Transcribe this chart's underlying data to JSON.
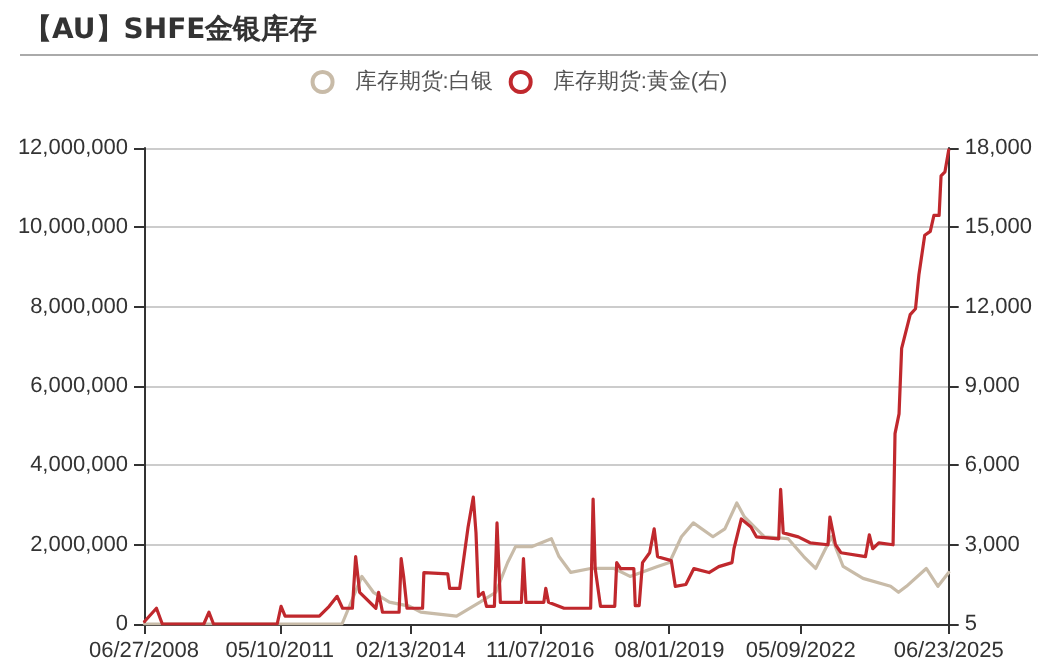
{
  "chart_data": {
    "type": "line",
    "title": "【AU】SHFE金银库存",
    "legend": "top",
    "grid": "y",
    "xlim": [
      "2008-06-27",
      "2025-06-23"
    ],
    "xticks": [
      {
        "value": "2008-06-27",
        "label": "06/27/2008"
      },
      {
        "value": "2011-05-10",
        "label": "05/10/2011"
      },
      {
        "value": "2014-02-13",
        "label": "02/13/2014"
      },
      {
        "value": "2016-11-07",
        "label": "11/07/2016"
      },
      {
        "value": "2019-08-01",
        "label": "08/01/2019"
      },
      {
        "value": "2022-05-09",
        "label": "05/09/2022"
      },
      {
        "value": "2025-06-23",
        "label": "06/23/2025"
      }
    ],
    "ylim": [
      0,
      12000000
    ],
    "yticks": [
      0,
      {
        "value": 2000000,
        "label": "2,000,000"
      },
      {
        "value": 4000000,
        "label": "4,000,000"
      },
      {
        "value": 6000000,
        "label": "6,000,000"
      },
      {
        "value": 8000000,
        "label": "8,000,000"
      },
      {
        "value": 10000000,
        "label": "10,000,000"
      },
      {
        "value": 12000000,
        "label": "12,000,000"
      }
    ],
    "y2lim": [
      5,
      18000
    ],
    "y2ticks": [
      5,
      {
        "value": 3000,
        "label": "3,000"
      },
      {
        "value": 6000,
        "label": "6,000"
      },
      {
        "value": 9000,
        "label": "9,000"
      },
      {
        "value": 12000,
        "label": "12,000"
      },
      {
        "value": 15000,
        "label": "15,000"
      },
      {
        "value": 18000,
        "label": "18,000"
      }
    ],
    "series": [
      {
        "name": "库存期货:白银",
        "color": "#c8bba8",
        "x": [
          "2008-07-01",
          "2012-09-01",
          "2013-02-01",
          "2013-05-01",
          "2013-09-01",
          "2014-02-01",
          "2014-05-01",
          "2015-02-01",
          "2015-08-01",
          "2015-12-01",
          "2016-03-01",
          "2016-05-01",
          "2016-09-01",
          "2017-02-01",
          "2017-04-01",
          "2017-07-01",
          "2017-12-01",
          "2018-06-01",
          "2018-10-01",
          "2019-05-01",
          "2019-08-01",
          "2019-11-01",
          "2020-02-01",
          "2020-07-01",
          "2020-10-01",
          "2021-01-01",
          "2021-03-01",
          "2021-08-01",
          "2022-02-01",
          "2022-06-01",
          "2022-09-01",
          "2023-01-01",
          "2023-04-01",
          "2023-09-01",
          "2024-04-01",
          "2024-06-01",
          "2024-08-01",
          "2025-01-01",
          "2025-04-01",
          "2025-06-23"
        ],
        "values": [
          0,
          0,
          1200000,
          800000,
          550000,
          450000,
          300000,
          200000,
          550000,
          800000,
          1550000,
          1950000,
          1950000,
          2150000,
          1700000,
          1300000,
          1400000,
          1400000,
          1200000,
          1450000,
          1550000,
          2200000,
          2550000,
          2200000,
          2400000,
          3050000,
          2700000,
          2200000,
          2150000,
          1700000,
          1400000,
          2200000,
          1450000,
          1150000,
          950000,
          800000,
          950000,
          1400000,
          950000,
          1300000
        ]
      },
      {
        "name": "库存期货:黄金(右)",
        "color": "#c0282d",
        "axis": "y2",
        "x": [
          "2008-07-01",
          "2008-10-01",
          "2008-11-15",
          "2009-10-01",
          "2009-11-10",
          "2009-12-15",
          "2011-04-20",
          "2011-05-20",
          "2011-06-20",
          "2012-03-10",
          "2012-05-25",
          "2012-07-25",
          "2012-09-05",
          "2012-11-20",
          "2012-12-15",
          "2013-01-15",
          "2013-05-20",
          "2013-06-10",
          "2013-07-10",
          "2013-11-15",
          "2013-12-01",
          "2013-12-20",
          "2014-01-15",
          "2014-05-15",
          "2014-05-25",
          "2014-11-25",
          "2014-12-10",
          "2015-02-25",
          "2015-05-01",
          "2015-06-10",
          "2015-07-01",
          "2015-07-20",
          "2015-08-25",
          "2015-09-20",
          "2015-11-20",
          "2015-12-10",
          "2016-01-05",
          "2016-06-15",
          "2016-07-01",
          "2016-07-20",
          "2016-12-05",
          "2016-12-20",
          "2017-01-10",
          "2017-05-10",
          "2017-12-01",
          "2017-12-20",
          "2018-01-05",
          "2018-02-15",
          "2018-06-05",
          "2018-06-20",
          "2018-07-20",
          "2018-10-30",
          "2018-11-10",
          "2018-12-10",
          "2019-01-05",
          "2019-03-01",
          "2019-04-05",
          "2019-05-01",
          "2019-08-15",
          "2019-09-15",
          "2019-12-05",
          "2020-02-05",
          "2020-06-01",
          "2020-08-15",
          "2020-11-25",
          "2020-12-10",
          "2021-02-05",
          "2021-04-20",
          "2021-06-01",
          "2021-11-20",
          "2021-12-05",
          "2021-12-25",
          "2022-04-20",
          "2022-07-20",
          "2022-12-05",
          "2022-12-20",
          "2023-02-01",
          "2023-03-15",
          "2023-09-20",
          "2023-10-20",
          "2023-11-15",
          "2024-01-01",
          "2024-04-20",
          "2024-05-05",
          "2024-06-05",
          "2024-06-25",
          "2024-08-30",
          "2024-10-10",
          "2024-11-05",
          "2024-12-20",
          "2025-02-01",
          "2025-03-01",
          "2025-04-10",
          "2025-04-25",
          "2025-05-25",
          "2025-06-23"
        ],
        "values": [
          100,
          600,
          5,
          5,
          450,
          5,
          5,
          675,
          300,
          300,
          675,
          1050,
          600,
          600,
          2550,
          1200,
          600,
          1200,
          450,
          450,
          2475,
          1800,
          600,
          600,
          1950,
          1900,
          1350,
          1350,
          3675,
          4800,
          3450,
          1050,
          1200,
          675,
          675,
          3825,
          825,
          825,
          2475,
          825,
          825,
          1350,
          825,
          600,
          600,
          4725,
          2100,
          675,
          675,
          2325,
          2100,
          2100,
          700,
          700,
          2325,
          2700,
          3600,
          2550,
          2400,
          1425,
          1500,
          2100,
          1950,
          2175,
          2325,
          2850,
          3975,
          3675,
          3300,
          3225,
          5100,
          3450,
          3300,
          3075,
          3000,
          4050,
          3000,
          2700,
          2550,
          3375,
          2850,
          3075,
          3000,
          7200,
          7950,
          10425,
          11700,
          11925,
          13200,
          14700,
          14850,
          15450,
          15450,
          16950,
          17100,
          17925
        ]
      }
    ]
  }
}
